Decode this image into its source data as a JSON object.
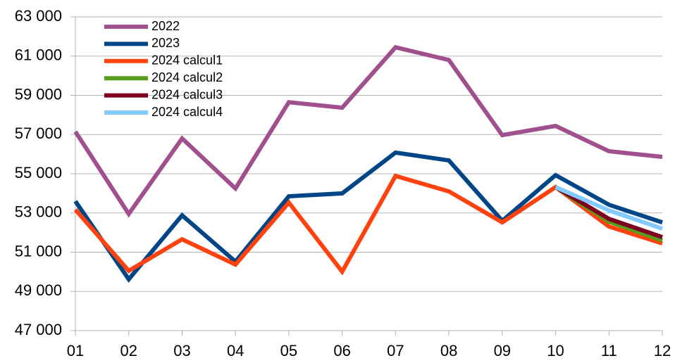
{
  "chart_data": {
    "type": "line",
    "categories": [
      "01",
      "02",
      "03",
      "04",
      "05",
      "06",
      "07",
      "08",
      "09",
      "10",
      "11",
      "12"
    ],
    "series": [
      {
        "name": "2022",
        "color": "#a0508c",
        "values": [
          57150,
          52950,
          56800,
          54250,
          58650,
          58370,
          61450,
          60800,
          56970,
          57440,
          56150,
          55860
        ]
      },
      {
        "name": "2023",
        "color": "#004586",
        "values": [
          53600,
          49620,
          52880,
          50520,
          53850,
          54000,
          56080,
          55680,
          52600,
          54930,
          53420,
          52520
        ]
      },
      {
        "name": "2024 calcul1",
        "color": "#ff420e",
        "values": [
          53170,
          50050,
          51660,
          50370,
          53530,
          50010,
          54890,
          54100,
          52520,
          54320,
          52310,
          51450
        ]
      },
      {
        "name": "2024 calcul2",
        "color": "#579d1c",
        "values": [
          null,
          null,
          null,
          null,
          null,
          null,
          null,
          null,
          null,
          54320,
          52560,
          51600
        ]
      },
      {
        "name": "2024 calcul3",
        "color": "#7e0021",
        "values": [
          null,
          null,
          null,
          null,
          null,
          null,
          null,
          null,
          null,
          54320,
          52700,
          51770
        ]
      },
      {
        "name": "2024 calcul4",
        "color": "#83caff",
        "values": [
          null,
          null,
          null,
          null,
          null,
          null,
          null,
          null,
          null,
          54320,
          53130,
          52200
        ]
      }
    ],
    "ylim": [
      47000,
      63000
    ],
    "yticks": [
      {
        "value": 47000,
        "label": "47 000"
      },
      {
        "value": 49000,
        "label": "49 000"
      },
      {
        "value": 51000,
        "label": "51 000"
      },
      {
        "value": 53000,
        "label": "53 000"
      },
      {
        "value": 55000,
        "label": "55 000"
      },
      {
        "value": 57000,
        "label": "57 000"
      },
      {
        "value": 59000,
        "label": "59 000"
      },
      {
        "value": 61000,
        "label": "61 000"
      },
      {
        "value": 63000,
        "label": "63 000"
      }
    ],
    "grid": true,
    "legend": "top-left"
  }
}
